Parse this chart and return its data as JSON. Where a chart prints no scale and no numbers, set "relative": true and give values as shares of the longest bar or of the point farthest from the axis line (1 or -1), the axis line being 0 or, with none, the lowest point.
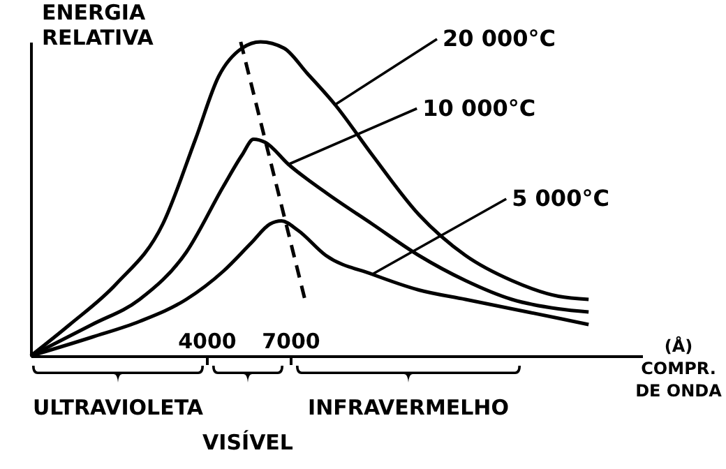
{
  "chart_data": {
    "type": "line",
    "relative": true,
    "xlabel": "(Å)\nCOMPR.\nDE ONDA",
    "ylabel": "ENERGIA\nRELATIVA",
    "xlim": [
      -2300,
      19600
    ],
    "xticks": [
      4000,
      7000
    ],
    "series": [
      {
        "name": "20 000°C",
        "color": "#000000",
        "x": [
          -2300,
          -900,
          770,
          2430,
          3600,
          4430,
          5270,
          5930,
          6770,
          7600,
          8600,
          9930,
          11600,
          13270,
          14930,
          16600,
          17680
        ],
        "values": [
          0,
          0.1,
          0.23,
          0.42,
          0.69,
          0.89,
          0.98,
          1,
          0.98,
          0.9,
          0.8,
          0.64,
          0.45,
          0.32,
          0.24,
          0.19,
          0.18
        ]
      },
      {
        "name": "10 000°C",
        "color": "#000000",
        "x": [
          -2300,
          -100,
          1600,
          3270,
          4600,
          5270,
          5680,
          6100,
          6930,
          8270,
          9930,
          11600,
          13270,
          14930,
          16600,
          17680
        ],
        "values": [
          0,
          0.1,
          0.18,
          0.33,
          0.54,
          0.64,
          0.69,
          0.68,
          0.61,
          0.52,
          0.42,
          0.32,
          0.24,
          0.18,
          0.15,
          0.14
        ]
      },
      {
        "name": "5 000°C",
        "color": "#000000",
        "x": [
          -2300,
          -100,
          1600,
          3270,
          4600,
          5600,
          6270,
          6680,
          7270,
          8270,
          9930,
          11600,
          13270,
          14930,
          16600,
          17680
        ],
        "values": [
          0,
          0.06,
          0.11,
          0.18,
          0.27,
          0.36,
          0.42,
          0.43,
          0.4,
          0.32,
          0.26,
          0.21,
          0.18,
          0.15,
          0.12,
          0.1
        ]
      },
      {
        "color": "#000000",
        "line_style": "dashed",
        "x": [
          5220,
          7520
        ],
        "values": [
          1,
          0.18
        ]
      }
    ],
    "annotations": [
      "ULTRAVIOLETA",
      "VISÍVEL",
      "INFRAVERMELHO"
    ]
  }
}
